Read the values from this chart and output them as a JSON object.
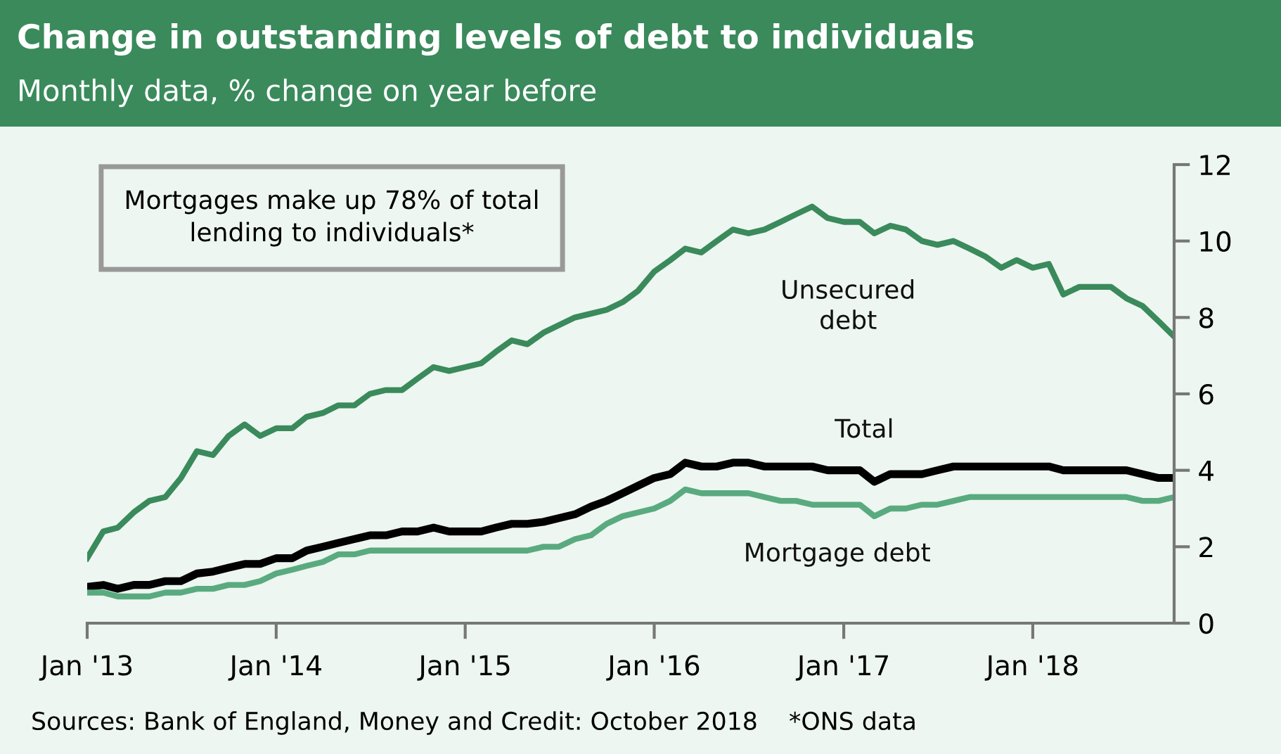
{
  "chart_data": {
    "type": "line",
    "title": "Change in outstanding levels of debt to individuals",
    "subtitle": "Monthly data, % change on year before",
    "x": [
      "2013-01",
      "2013-02",
      "2013-03",
      "2013-04",
      "2013-05",
      "2013-06",
      "2013-07",
      "2013-08",
      "2013-09",
      "2013-10",
      "2013-11",
      "2013-12",
      "2014-01",
      "2014-02",
      "2014-03",
      "2014-04",
      "2014-05",
      "2014-06",
      "2014-07",
      "2014-08",
      "2014-09",
      "2014-10",
      "2014-11",
      "2014-12",
      "2015-01",
      "2015-02",
      "2015-03",
      "2015-04",
      "2015-05",
      "2015-06",
      "2015-07",
      "2015-08",
      "2015-09",
      "2015-10",
      "2015-11",
      "2015-12",
      "2016-01",
      "2016-02",
      "2016-03",
      "2016-04",
      "2016-05",
      "2016-06",
      "2016-07",
      "2016-08",
      "2016-09",
      "2016-10",
      "2016-11",
      "2016-12",
      "2017-01",
      "2017-02",
      "2017-03",
      "2017-04",
      "2017-05",
      "2017-06",
      "2017-07",
      "2017-08",
      "2017-09",
      "2017-10",
      "2017-11",
      "2017-12",
      "2018-01",
      "2018-02",
      "2018-03",
      "2018-04",
      "2018-05",
      "2018-06",
      "2018-07",
      "2018-08",
      "2018-09",
      "2018-10"
    ],
    "series": [
      {
        "name": "Unsecured\ndebt",
        "color": "#3a8a5c",
        "values": [
          1.7,
          2.4,
          2.5,
          2.9,
          3.2,
          3.3,
          3.8,
          4.5,
          4.4,
          4.9,
          5.2,
          4.9,
          5.1,
          5.1,
          5.4,
          5.5,
          5.7,
          5.7,
          6.0,
          6.1,
          6.1,
          6.4,
          6.7,
          6.6,
          6.7,
          6.8,
          7.1,
          7.4,
          7.3,
          7.6,
          7.8,
          8.0,
          8.1,
          8.2,
          8.4,
          8.7,
          9.2,
          9.5,
          9.8,
          9.7,
          10.0,
          10.3,
          10.2,
          10.3,
          10.5,
          10.7,
          10.9,
          10.6,
          10.5,
          10.5,
          10.2,
          10.4,
          10.3,
          10.0,
          9.9,
          10.0,
          9.8,
          9.6,
          9.3,
          9.5,
          9.3,
          9.4,
          8.6,
          8.8,
          8.8,
          8.8,
          8.5,
          8.3,
          7.9,
          7.5
        ]
      },
      {
        "name": "Total",
        "color": "#000000",
        "values": [
          0.95,
          1.0,
          0.9,
          1.0,
          1.0,
          1.1,
          1.1,
          1.3,
          1.35,
          1.45,
          1.55,
          1.55,
          1.7,
          1.7,
          1.9,
          2.0,
          2.1,
          2.2,
          2.3,
          2.3,
          2.4,
          2.4,
          2.5,
          2.4,
          2.4,
          2.4,
          2.5,
          2.6,
          2.6,
          2.65,
          2.75,
          2.85,
          3.05,
          3.2,
          3.4,
          3.6,
          3.8,
          3.9,
          4.2,
          4.1,
          4.1,
          4.2,
          4.2,
          4.1,
          4.1,
          4.1,
          4.1,
          4.0,
          4.0,
          4.0,
          3.7,
          3.9,
          3.9,
          3.9,
          4.0,
          4.1,
          4.1,
          4.1,
          4.1,
          4.1,
          4.1,
          4.1,
          4.0,
          4.0,
          4.0,
          4.0,
          4.0,
          3.9,
          3.8,
          3.8
        ]
      },
      {
        "name": "Mortgage debt",
        "color": "#5aaa80",
        "values": [
          0.8,
          0.8,
          0.7,
          0.7,
          0.7,
          0.8,
          0.8,
          0.9,
          0.9,
          1.0,
          1.0,
          1.1,
          1.3,
          1.4,
          1.5,
          1.6,
          1.8,
          1.8,
          1.9,
          1.9,
          1.9,
          1.9,
          1.9,
          1.9,
          1.9,
          1.9,
          1.9,
          1.9,
          1.9,
          2.0,
          2.0,
          2.2,
          2.3,
          2.6,
          2.8,
          2.9,
          3.0,
          3.2,
          3.5,
          3.4,
          3.4,
          3.4,
          3.4,
          3.3,
          3.2,
          3.2,
          3.1,
          3.1,
          3.1,
          3.1,
          2.8,
          3.0,
          3.0,
          3.1,
          3.1,
          3.2,
          3.3,
          3.3,
          3.3,
          3.3,
          3.3,
          3.3,
          3.3,
          3.3,
          3.3,
          3.3,
          3.3,
          3.2,
          3.2,
          3.3
        ]
      }
    ],
    "xlim": [
      "2013-01",
      "2018-10"
    ],
    "xticks": [
      {
        "value": "2013-01",
        "label": "Jan '13"
      },
      {
        "value": "2014-01",
        "label": "Jan '14"
      },
      {
        "value": "2015-01",
        "label": "Jan '15"
      },
      {
        "value": "2016-01",
        "label": "Jan '16"
      },
      {
        "value": "2017-01",
        "label": "Jan '17"
      },
      {
        "value": "2018-01",
        "label": "Jan '18"
      }
    ],
    "ylim": [
      0,
      12
    ],
    "yticks": [
      0,
      2,
      4,
      6,
      8,
      10,
      12
    ],
    "grid": false,
    "legend": false,
    "marker": "none",
    "line_style": "solid",
    "annotations": [
      "Mortgages make up 78% of total\nlending to individuals*",
      "Sources: Bank of England, Money and Credit: October 2018    *ONS data"
    ]
  }
}
